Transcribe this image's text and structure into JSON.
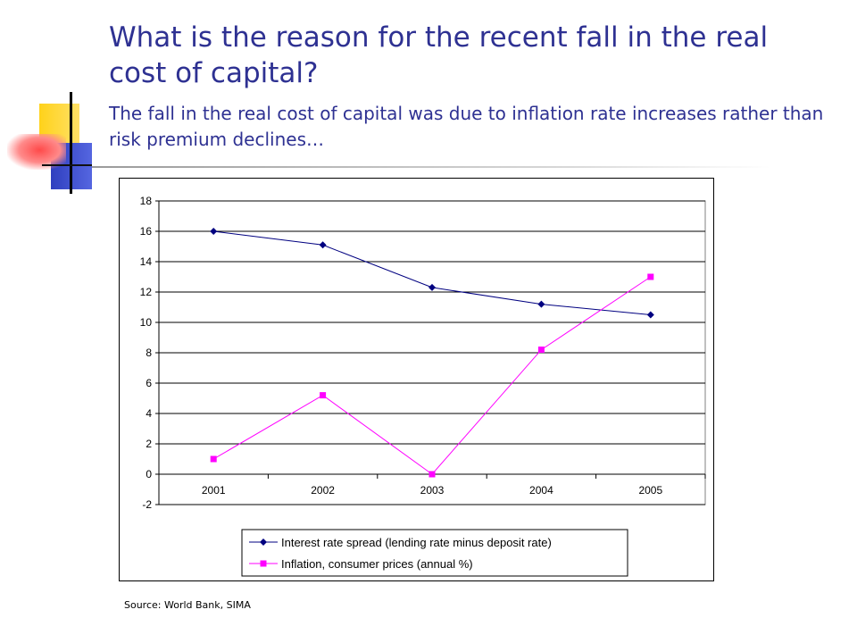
{
  "slide": {
    "title": "What is the reason for the recent fall in the real cost of capital?",
    "subtitle": "The fall in the real cost of capital was due to inflation rate increases rather than risk premium declines…",
    "source": "Source: World Bank, SIMA"
  },
  "chart_data": {
    "type": "line",
    "categories": [
      "2001",
      "2002",
      "2003",
      "2004",
      "2005"
    ],
    "series": [
      {
        "name": "Interest rate spread (lending rate minus deposit rate)",
        "values": [
          16.0,
          15.1,
          12.3,
          11.2,
          10.5
        ],
        "color": "#000080",
        "marker": "diamond"
      },
      {
        "name": "Inflation, consumer prices (annual %)",
        "values": [
          1.0,
          5.2,
          0.0,
          8.2,
          13.0
        ],
        "color": "#ff00ff",
        "marker": "square"
      }
    ],
    "ylim": [
      -2,
      18
    ],
    "yticks": [
      "18",
      "16",
      "14",
      "12",
      "10",
      "8",
      "6",
      "4",
      "2",
      "0",
      "-2"
    ],
    "grid": true,
    "legend_position": "bottom"
  }
}
